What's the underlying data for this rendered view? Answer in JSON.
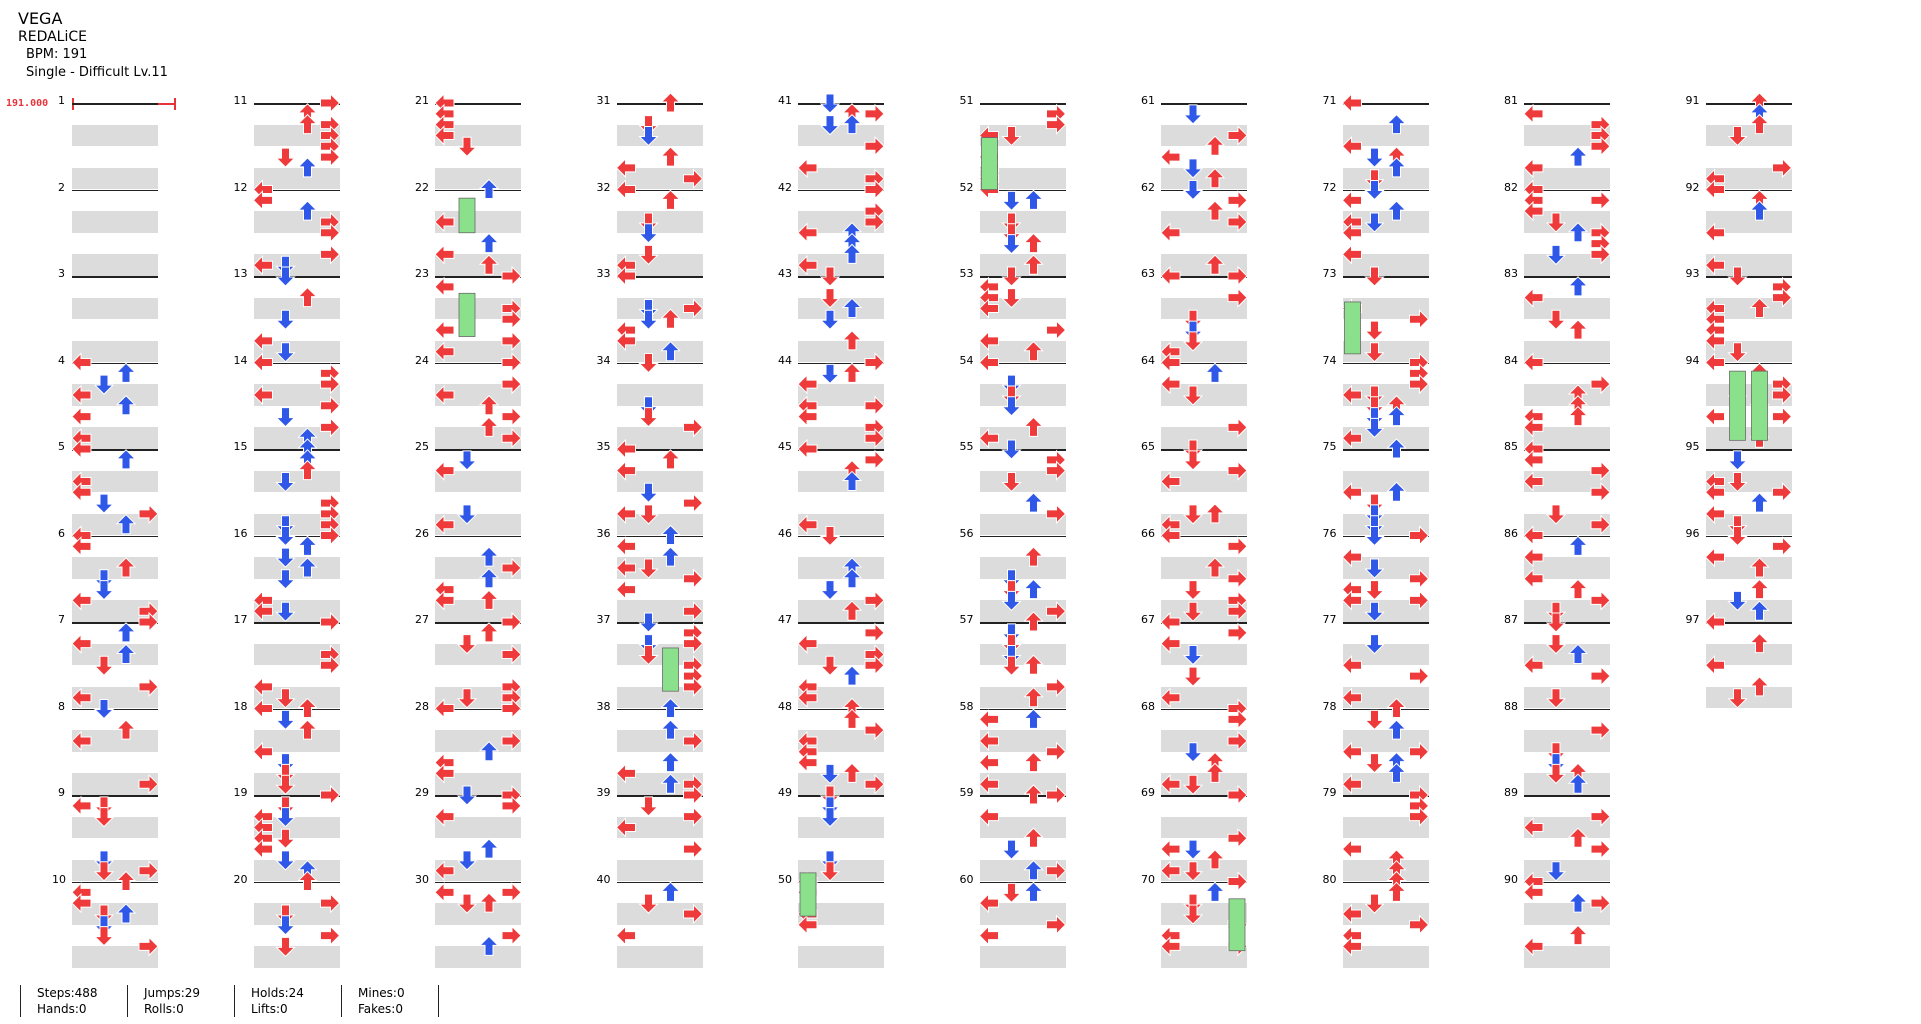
{
  "song": {
    "title": "VEGA",
    "artist": "REDALiCE",
    "bpm_text": "BPM: 191",
    "difficulty_text": "Single - Difficult Lv.11",
    "bpm_marker": "191.000"
  },
  "measures": {
    "count": 97,
    "per_column": 10
  },
  "colors": {
    "red": "#ee3a3a",
    "blue": "#2f57e8",
    "yellow": "#f4d23a",
    "hold": "#8be08b",
    "band": "#dcdcdc"
  },
  "stats": {
    "steps": "Steps:488",
    "hands": "Hands:0",
    "jumps": "Jumps:29",
    "rolls": "Rolls:0",
    "holds": "Holds:24",
    "lifts": "Lifts:0",
    "mines": "Mines:0",
    "fakes": "Fakes:0"
  }
}
